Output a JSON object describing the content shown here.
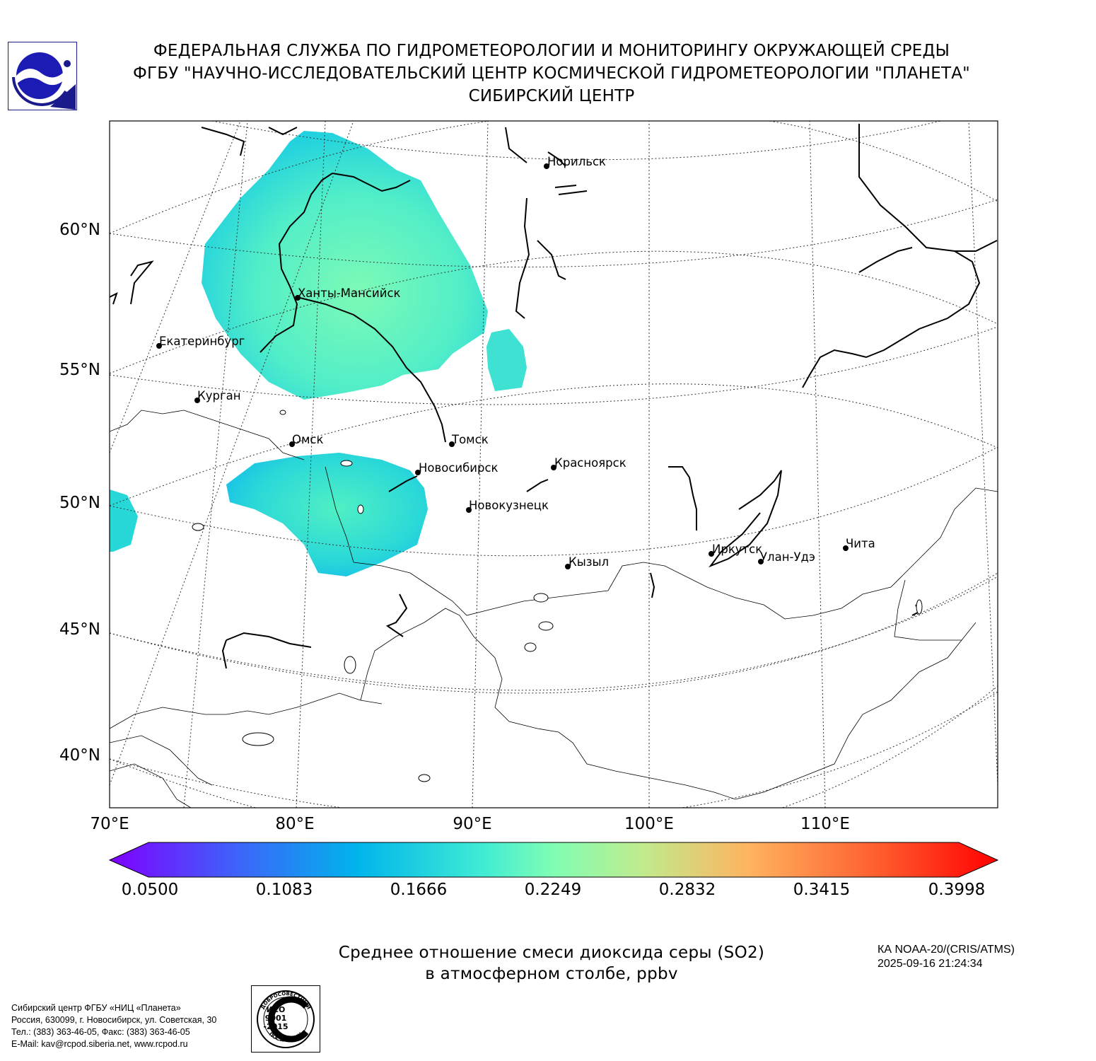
{
  "header": {
    "line1": "ФЕДЕРАЛЬНАЯ СЛУЖБА ПО ГИДРОМЕТЕОРОЛОГИИ И МОНИТОРИНГУ ОКРУЖАЮЩЕЙ СРЕДЫ",
    "line2": "ФГБУ \"НАУЧНО-ИССЛЕДОВАТЕЛЬСКИЙ ЦЕНТР КОСМИЧЕСКОЙ ГИДРОМЕТЕОРОЛОГИИ \"ПЛАНЕТА\"",
    "line3": "СИБИРСКИЙ ЦЕНТР"
  },
  "map": {
    "lat_labels": [
      "60°N",
      "55°N",
      "50°N",
      "45°N",
      "40°N"
    ],
    "lon_labels": [
      "70°E",
      "80°E",
      "90°E",
      "100°E",
      "110°E"
    ],
    "cities": [
      {
        "name": "Норильск"
      },
      {
        "name": "Ханты-Мансийск"
      },
      {
        "name": "Екатеринбург"
      },
      {
        "name": "Курган"
      },
      {
        "name": "Омск"
      },
      {
        "name": "Томск"
      },
      {
        "name": "Новосибирск"
      },
      {
        "name": "Красноярск"
      },
      {
        "name": "Новокузнецк"
      },
      {
        "name": "Кызыл"
      },
      {
        "name": "Иркутск"
      },
      {
        "name": "Улан-Удэ"
      },
      {
        "name": "Чита"
      }
    ]
  },
  "colorbar": {
    "ticks": [
      "0.0500",
      "0.1083",
      "0.1666",
      "0.2249",
      "0.2832",
      "0.3415",
      "0.3998"
    ],
    "min": 0.05,
    "max": 0.3998,
    "colors": [
      "#7f00ff",
      "#3f61fa",
      "#00b5eb",
      "#40ecd4",
      "#80feb3",
      "#c0eb8d",
      "#ffb360",
      "#ff6130",
      "#ff0000"
    ]
  },
  "title": {
    "line1": "Среднее отношение смеси диоксида серы (SO2)",
    "line2": "в атмосферном столбе, ppbv"
  },
  "satellite": {
    "name": "КА NOAA-20/(CRIS/ATMS)",
    "datetime": "2025-09-16 21:24:34"
  },
  "contact": {
    "line1": "Сибирский центр ФГБУ «НИЦ «Планета»",
    "line2": "Россия, 630099, г. Новосибирск, ул. Советская, 30",
    "line3": "Тел.: (383) 363-46-05, Факс: (383) 363-46-05",
    "line4": "E-Mail: kav@rcpod.siberia.net, www.rcpod.ru"
  },
  "iso_badge": {
    "top_text": "ДОБРОСОВЕСТНЫЙ",
    "line1": "ИСО",
    "line2": "9001",
    "line3": "-2015",
    "bottom_text": "ПОСТАВЩИК"
  }
}
